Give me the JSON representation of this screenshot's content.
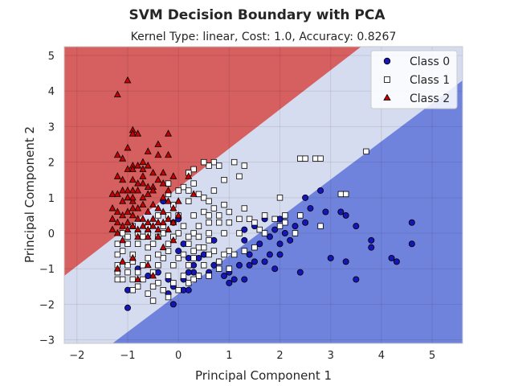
{
  "chart_data": {
    "type": "scatter",
    "title": "SVM Decision Boundary with PCA",
    "subtitle": "Kernel Type: linear, Cost: 1.0, Accuracy: 0.8267",
    "xlabel": "Principal Component 1",
    "ylabel": "Principal Component 2",
    "xlim": [
      -2.25,
      5.6
    ],
    "ylim": [
      -3.1,
      5.25
    ],
    "xticks": [
      -2,
      -1,
      0,
      1,
      2,
      3,
      4,
      5
    ],
    "yticks": [
      -3,
      -2,
      -1,
      0,
      1,
      2,
      3,
      4,
      5
    ],
    "grid": true,
    "legend_position": "top-right",
    "regions": [
      {
        "class": "Class 2",
        "color": "#d65f5f",
        "boundary_upper_of": {
          "x0": -2.25,
          "y0": -1.2,
          "x1": 3.6,
          "y1": 5.25
        }
      },
      {
        "class": "Class 1",
        "color": "#d6dcef"
      },
      {
        "class": "Class 0",
        "color": "#6f83dd",
        "boundary_lower_of": {
          "x0": -1.3,
          "y0": -3.1,
          "x1": 5.6,
          "y1": 4.3
        }
      }
    ],
    "series": [
      {
        "name": "Class 0",
        "marker": "circle",
        "color": "#1515b8",
        "points": [
          [
            2.5,
            1.0
          ],
          [
            2.6,
            0.7
          ],
          [
            2.8,
            1.2
          ],
          [
            2.9,
            0.6
          ],
          [
            3.2,
            0.6
          ],
          [
            3.3,
            0.5
          ],
          [
            3.5,
            0.2
          ],
          [
            4.6,
            0.3
          ],
          [
            4.6,
            -0.3
          ],
          [
            3.8,
            -0.2
          ],
          [
            3.8,
            -0.4
          ],
          [
            4.2,
            -0.7
          ],
          [
            4.3,
            -0.8
          ],
          [
            3.0,
            -0.7
          ],
          [
            3.3,
            -0.8
          ],
          [
            3.5,
            -1.3
          ],
          [
            2.4,
            -1.1
          ],
          [
            2.0,
            -0.6
          ],
          [
            2.0,
            -0.3
          ],
          [
            2.1,
            0.0
          ],
          [
            2.3,
            0.2
          ],
          [
            2.0,
            0.4
          ],
          [
            1.7,
            0.4
          ],
          [
            1.5,
            0.2
          ],
          [
            1.3,
            0.1
          ],
          [
            1.6,
            -0.3
          ],
          [
            1.8,
            -0.6
          ],
          [
            1.7,
            -0.8
          ],
          [
            1.5,
            -0.8
          ],
          [
            1.4,
            -0.9
          ],
          [
            1.3,
            -1.3
          ],
          [
            1.1,
            -1.3
          ],
          [
            1.0,
            -1.1
          ],
          [
            1.0,
            -1.4
          ],
          [
            0.8,
            -0.8
          ],
          [
            0.7,
            -0.9
          ],
          [
            0.5,
            -0.6
          ],
          [
            0.4,
            -0.7
          ],
          [
            0.3,
            -0.9
          ],
          [
            0.3,
            -1.1
          ],
          [
            0.2,
            -1.1
          ],
          [
            0.1,
            -1.3
          ],
          [
            0.1,
            -1.6
          ],
          [
            -0.1,
            -1.5
          ],
          [
            -0.2,
            -1.3
          ],
          [
            -0.4,
            -1.1
          ],
          [
            -0.6,
            -1.2
          ],
          [
            -0.8,
            -1.0
          ],
          [
            -1.0,
            -1.6
          ],
          [
            -1.0,
            -2.1
          ],
          [
            -0.1,
            -2.0
          ],
          [
            -0.2,
            -1.7
          ],
          [
            0.2,
            -1.6
          ],
          [
            0.4,
            -1.2
          ],
          [
            0.6,
            -1.1
          ],
          [
            0.0,
            -0.5
          ],
          [
            -0.1,
            0.3
          ],
          [
            0.0,
            0.4
          ],
          [
            -0.3,
            0.9
          ],
          [
            0.1,
            -0.3
          ],
          [
            0.2,
            -0.7
          ],
          [
            1.9,
            0.1
          ],
          [
            1.8,
            -0.1
          ],
          [
            1.4,
            -0.6
          ],
          [
            1.2,
            -0.9
          ],
          [
            0.9,
            -1.2
          ],
          [
            2.2,
            -0.2
          ],
          [
            1.9,
            -1.0
          ],
          [
            2.5,
            0.3
          ],
          [
            0.7,
            -0.2
          ],
          [
            1.3,
            -0.2
          ]
        ]
      },
      {
        "name": "Class 1",
        "marker": "square",
        "color": "#ffffff",
        "points": [
          [
            3.7,
            2.3
          ],
          [
            3.2,
            1.1
          ],
          [
            3.3,
            1.1
          ],
          [
            2.7,
            2.1
          ],
          [
            2.8,
            2.1
          ],
          [
            2.4,
            2.1
          ],
          [
            2.5,
            2.1
          ],
          [
            2.0,
            1.0
          ],
          [
            1.3,
            1.9
          ],
          [
            1.1,
            2.0
          ],
          [
            0.7,
            2.0
          ],
          [
            0.8,
            1.9
          ],
          [
            0.6,
            1.9
          ],
          [
            0.5,
            2.0
          ],
          [
            0.3,
            1.8
          ],
          [
            0.2,
            1.7
          ],
          [
            -0.2,
            1.4
          ],
          [
            0.1,
            1.3
          ],
          [
            0.2,
            1.2
          ],
          [
            0.5,
            1.0
          ],
          [
            0.6,
            0.9
          ],
          [
            0.9,
            0.8
          ],
          [
            0.7,
            0.7
          ],
          [
            0.5,
            0.6
          ],
          [
            0.3,
            0.5
          ],
          [
            0.0,
            0.5
          ],
          [
            -0.2,
            0.5
          ],
          [
            -0.4,
            0.5
          ],
          [
            -0.3,
            0.2
          ],
          [
            0.1,
            0.2
          ],
          [
            0.4,
            0.2
          ],
          [
            0.6,
            0.3
          ],
          [
            0.8,
            0.3
          ],
          [
            1.0,
            0.3
          ],
          [
            1.2,
            0.4
          ],
          [
            1.4,
            0.4
          ],
          [
            1.5,
            0.3
          ],
          [
            1.7,
            0.5
          ],
          [
            1.9,
            0.4
          ],
          [
            2.1,
            0.3
          ],
          [
            2.1,
            0.5
          ],
          [
            2.3,
            0.0
          ],
          [
            2.4,
            0.5
          ],
          [
            2.8,
            0.2
          ],
          [
            1.6,
            0.1
          ],
          [
            1.2,
            0.0
          ],
          [
            0.9,
            0.0
          ],
          [
            0.6,
            0.0
          ],
          [
            0.3,
            0.0
          ],
          [
            0.0,
            0.0
          ],
          [
            -0.3,
            0.0
          ],
          [
            -0.6,
            0.0
          ],
          [
            -0.8,
            0.0
          ],
          [
            -1.1,
            0.0
          ],
          [
            -1.2,
            -0.3
          ],
          [
            -1.0,
            -0.3
          ],
          [
            -0.8,
            -0.3
          ],
          [
            -0.5,
            -0.3
          ],
          [
            -0.2,
            -0.3
          ],
          [
            0.2,
            -0.3
          ],
          [
            0.4,
            -0.4
          ],
          [
            0.7,
            -0.5
          ],
          [
            1.0,
            -0.5
          ],
          [
            1.3,
            -0.5
          ],
          [
            1.5,
            -0.4
          ],
          [
            1.1,
            -0.6
          ],
          [
            0.9,
            -0.6
          ],
          [
            0.6,
            -0.6
          ],
          [
            0.3,
            -0.7
          ],
          [
            0.0,
            -0.7
          ],
          [
            -0.3,
            -0.7
          ],
          [
            -0.6,
            -0.7
          ],
          [
            -0.9,
            -0.6
          ],
          [
            -1.2,
            -0.6
          ],
          [
            -1.2,
            -0.9
          ],
          [
            -1.0,
            -0.9
          ],
          [
            -0.7,
            -0.9
          ],
          [
            -0.4,
            -0.9
          ],
          [
            -0.1,
            -0.9
          ],
          [
            0.2,
            -0.9
          ],
          [
            0.5,
            -0.9
          ],
          [
            0.8,
            -1.0
          ],
          [
            1.0,
            -1.0
          ],
          [
            -1.2,
            -1.1
          ],
          [
            -1.0,
            -1.1
          ],
          [
            -0.8,
            -1.1
          ],
          [
            -0.5,
            -1.1
          ],
          [
            -0.2,
            -1.2
          ],
          [
            0.1,
            -1.2
          ],
          [
            0.4,
            -1.2
          ],
          [
            -1.1,
            -1.3
          ],
          [
            -0.9,
            -1.3
          ],
          [
            -0.7,
            -1.3
          ],
          [
            -0.4,
            -1.4
          ],
          [
            -0.1,
            -1.4
          ],
          [
            0.2,
            -1.4
          ],
          [
            -0.8,
            -1.5
          ],
          [
            -0.5,
            -1.5
          ],
          [
            -0.3,
            -1.6
          ],
          [
            -0.9,
            -1.6
          ],
          [
            -0.6,
            -1.7
          ],
          [
            -1.2,
            -1.3
          ],
          [
            -1.1,
            -0.5
          ],
          [
            -0.9,
            -0.8
          ],
          [
            -0.6,
            -0.4
          ],
          [
            -0.4,
            -0.6
          ],
          [
            -0.2,
            -0.5
          ],
          [
            0.1,
            -0.6
          ],
          [
            0.3,
            -0.5
          ],
          [
            0.5,
            -0.4
          ],
          [
            0.6,
            -0.2
          ],
          [
            0.4,
            -0.1
          ],
          [
            0.2,
            -0.1
          ],
          [
            -0.1,
            -0.1
          ],
          [
            -0.4,
            -0.1
          ],
          [
            -0.7,
            -0.1
          ],
          [
            -1.0,
            -0.1
          ],
          [
            -0.9,
            0.2
          ],
          [
            -0.6,
            0.2
          ],
          [
            -0.1,
            0.8
          ],
          [
            0.2,
            0.9
          ],
          [
            0.4,
            1.1
          ],
          [
            0.7,
            1.2
          ],
          [
            0.9,
            1.5
          ],
          [
            1.2,
            1.6
          ],
          [
            0.0,
            1.2
          ],
          [
            0.3,
            1.4
          ],
          [
            -0.2,
            1.1
          ],
          [
            0.6,
            0.5
          ],
          [
            1.0,
            0.6
          ],
          [
            1.3,
            0.7
          ],
          [
            0.8,
            0.5
          ],
          [
            2.0,
            0.2
          ],
          [
            1.7,
            0.0
          ],
          [
            -0.5,
            -1.9
          ],
          [
            -0.2,
            -1.8
          ],
          [
            0.0,
            -1.6
          ],
          [
            0.3,
            -1.3
          ],
          [
            0.6,
            -1.2
          ],
          [
            0.8,
            -0.8
          ]
        ]
      },
      {
        "name": "Class 2",
        "marker": "triangle",
        "color": "#c80000",
        "points": [
          [
            -1.0,
            4.3
          ],
          [
            -1.2,
            3.9
          ],
          [
            -0.9,
            2.9
          ],
          [
            -0.9,
            2.8
          ],
          [
            -0.8,
            2.8
          ],
          [
            -0.2,
            2.8
          ],
          [
            -0.4,
            2.5
          ],
          [
            -0.6,
            2.3
          ],
          [
            -0.4,
            2.2
          ],
          [
            -0.2,
            2.2
          ],
          [
            -1.2,
            2.2
          ],
          [
            -1.1,
            2.1
          ],
          [
            -0.9,
            1.9
          ],
          [
            -0.9,
            1.8
          ],
          [
            -0.8,
            1.9
          ],
          [
            -0.7,
            1.8
          ],
          [
            -0.7,
            1.6
          ],
          [
            -1.0,
            1.8
          ],
          [
            -1.2,
            1.6
          ],
          [
            -0.9,
            1.5
          ],
          [
            -0.8,
            1.4
          ],
          [
            -0.7,
            1.4
          ],
          [
            -0.6,
            1.3
          ],
          [
            -0.5,
            1.3
          ],
          [
            -0.4,
            1.5
          ],
          [
            -0.3,
            1.7
          ],
          [
            -0.1,
            1.6
          ],
          [
            -0.2,
            1.2
          ],
          [
            -0.5,
            1.2
          ],
          [
            -0.6,
            1.1
          ],
          [
            -0.7,
            1.0
          ],
          [
            -0.9,
            1.2
          ],
          [
            -1.0,
            1.2
          ],
          [
            -1.1,
            1.2
          ],
          [
            -1.2,
            1.1
          ],
          [
            -1.3,
            1.1
          ],
          [
            -1.1,
            0.9
          ],
          [
            -1.0,
            1.0
          ],
          [
            -0.9,
            0.9
          ],
          [
            -0.8,
            0.7
          ],
          [
            -0.7,
            0.8
          ],
          [
            -0.6,
            0.6
          ],
          [
            -0.5,
            0.8
          ],
          [
            -0.4,
            0.7
          ],
          [
            -0.3,
            0.6
          ],
          [
            -0.2,
            0.9
          ],
          [
            -0.1,
            0.7
          ],
          [
            0.0,
            0.9
          ],
          [
            0.3,
            1.1
          ],
          [
            0.2,
            1.6
          ],
          [
            -1.3,
            0.7
          ],
          [
            -1.2,
            0.6
          ],
          [
            -1.1,
            0.5
          ],
          [
            -1.0,
            0.6
          ],
          [
            -0.9,
            0.5
          ],
          [
            -0.8,
            0.4
          ],
          [
            -0.7,
            0.4
          ],
          [
            -0.6,
            0.3
          ],
          [
            -0.5,
            0.4
          ],
          [
            -0.4,
            0.3
          ],
          [
            -0.3,
            0.3
          ],
          [
            -0.2,
            0.4
          ],
          [
            -0.1,
            0.3
          ],
          [
            -1.3,
            0.4
          ],
          [
            -1.2,
            0.3
          ],
          [
            -1.1,
            0.2
          ],
          [
            -1.0,
            0.3
          ],
          [
            -0.9,
            0.2
          ],
          [
            -0.8,
            0.1
          ],
          [
            -0.7,
            0.2
          ],
          [
            -0.6,
            0.1
          ],
          [
            -0.5,
            0.2
          ],
          [
            -0.4,
            0.1
          ],
          [
            -1.3,
            0.1
          ],
          [
            -1.2,
            0.0
          ],
          [
            -1.0,
            0.1
          ],
          [
            -0.8,
            -0.1
          ],
          [
            -0.6,
            -0.1
          ],
          [
            -0.4,
            -0.1
          ],
          [
            -1.1,
            -0.2
          ],
          [
            -0.8,
            1.2
          ],
          [
            -0.9,
            1.0
          ],
          [
            -0.3,
            1.0
          ],
          [
            0.0,
            0.5
          ],
          [
            -0.2,
            0.1
          ],
          [
            -0.1,
            -0.2
          ],
          [
            -0.3,
            -0.4
          ],
          [
            -1.1,
            -0.8
          ],
          [
            -0.9,
            -0.7
          ],
          [
            -0.6,
            -0.9
          ],
          [
            -0.5,
            -1.2
          ],
          [
            -0.8,
            -1.3
          ],
          [
            -1.2,
            -1.0
          ],
          [
            -0.9,
            0.7
          ],
          [
            -1.1,
            1.5
          ],
          [
            -0.7,
            2.0
          ],
          [
            -0.5,
            1.7
          ],
          [
            -0.6,
            1.9
          ],
          [
            -1.0,
            2.4
          ],
          [
            -0.3,
            1.4
          ]
        ]
      }
    ]
  },
  "legend": {
    "items": [
      {
        "label": "Class 0"
      },
      {
        "label": "Class 1"
      },
      {
        "label": "Class 2"
      }
    ]
  }
}
